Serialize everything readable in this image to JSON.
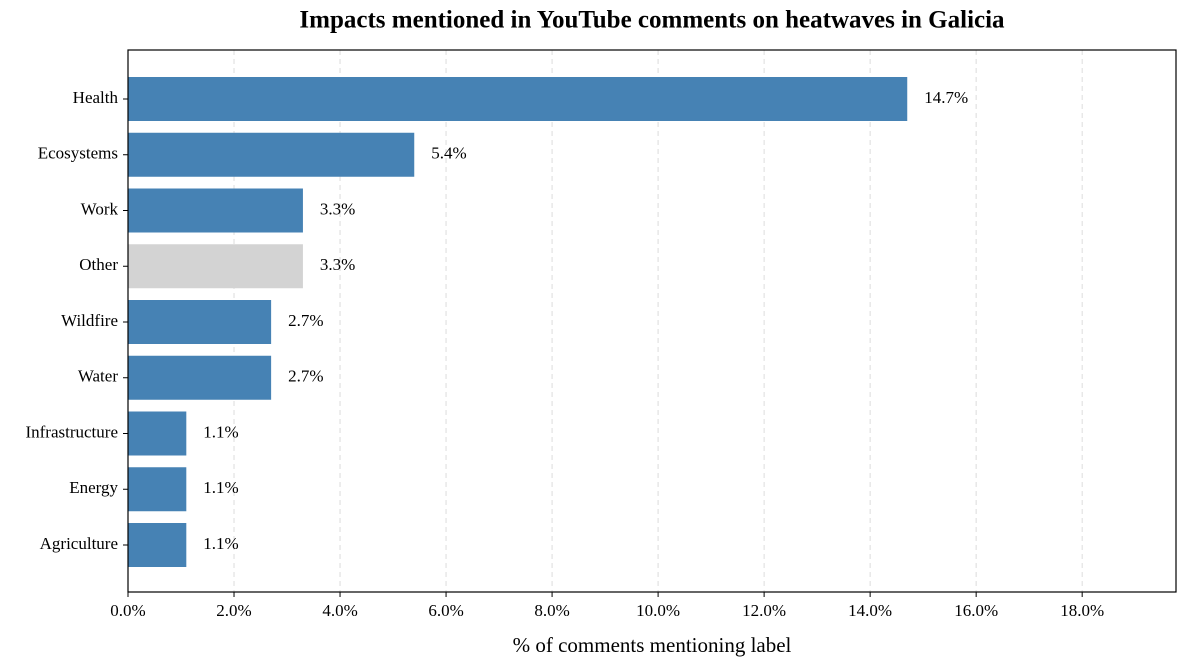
{
  "chart_data": {
    "type": "barh",
    "title": "Impacts mentioned in YouTube comments on heatwaves in Galicia",
    "x_label": "% of comments mentioning label",
    "categories": [
      "Health",
      "Ecosystems",
      "Work",
      "Other",
      "Wildfire",
      "Water",
      "Infrastructure",
      "Energy",
      "Agriculture"
    ],
    "values": [
      14.7,
      5.4,
      3.3,
      3.3,
      2.7,
      2.7,
      1.1,
      1.1,
      1.1
    ],
    "value_labels": [
      "14.7%",
      "5.4%",
      "3.3%",
      "3.3%",
      "2.7%",
      "2.7%",
      "1.1%",
      "1.1%",
      "1.1%"
    ],
    "colors": [
      "#4682b4",
      "#4682b4",
      "#4682b4",
      "#d3d3d3",
      "#4682b4",
      "#4682b4",
      "#4682b4",
      "#4682b4",
      "#4682b4"
    ],
    "xlim": [
      0,
      19.77
    ],
    "xticks": [
      {
        "value": 0,
        "label": "0.0%"
      },
      {
        "value": 2,
        "label": "2.0%"
      },
      {
        "value": 4,
        "label": "4.0%"
      },
      {
        "value": 6,
        "label": "6.0%"
      },
      {
        "value": 8,
        "label": "8.0%"
      },
      {
        "value": 10,
        "label": "10.0%"
      },
      {
        "value": 12,
        "label": "12.0%"
      },
      {
        "value": 14,
        "label": "14.0%"
      },
      {
        "value": 16,
        "label": "16.0%"
      },
      {
        "value": 18,
        "label": "18.0%"
      }
    ],
    "grid": true
  }
}
